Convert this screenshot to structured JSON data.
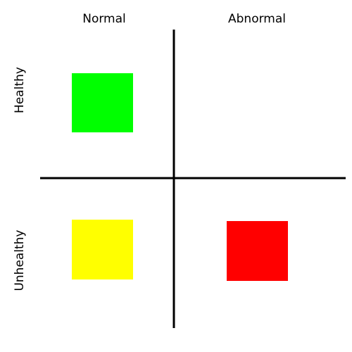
{
  "columns": [
    "Normal",
    "Abnormal"
  ],
  "rows": [
    "Healthy",
    "Unhealthy"
  ]
}
